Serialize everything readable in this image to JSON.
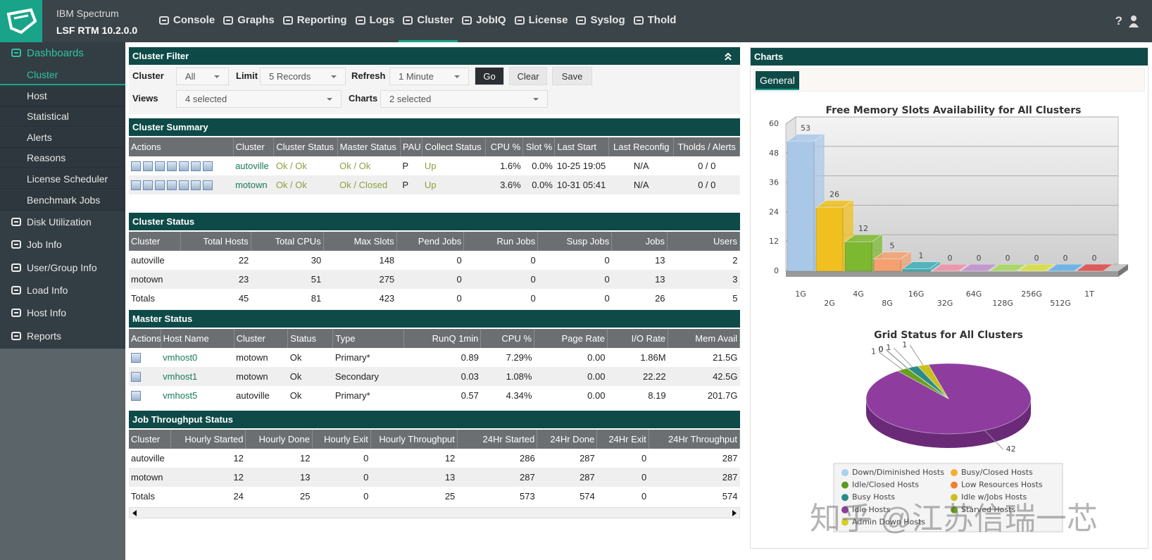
{
  "header": {
    "product": "IBM Spectrum",
    "version": "LSF RTM 10.2.0.0",
    "nav": [
      "Console",
      "Graphs",
      "Reporting",
      "Logs",
      "Cluster",
      "JobIQ",
      "License",
      "Syslog",
      "Thold"
    ],
    "active_nav": 4,
    "help": "?"
  },
  "sidebar": {
    "dashboards": "Dashboards",
    "dashboard_items": [
      "Cluster",
      "Host",
      "Statistical",
      "Alerts",
      "Reasons",
      "License Scheduler",
      "Benchmark Jobs"
    ],
    "active_item": 0,
    "sections": [
      "Disk Utilization",
      "Job Info",
      "User/Group Info",
      "Load Info",
      "Host Info",
      "Reports"
    ]
  },
  "cluster_filter": {
    "title": "Cluster Filter",
    "cluster_label": "Cluster",
    "cluster": "All",
    "limit_label": "Limit",
    "limit": "5 Records",
    "refresh_label": "Refresh",
    "refresh": "1 Minute",
    "buttons": [
      "Go",
      "Clear",
      "Save"
    ],
    "views_label": "Views",
    "views": "4 selected",
    "charts_label": "Charts",
    "charts": "2 selected"
  },
  "cluster_summary": {
    "title": "Cluster Summary",
    "columns": [
      "Actions",
      "Cluster",
      "Cluster Status",
      "Master Status",
      "PAU",
      "Collect Status",
      "CPU %",
      "Slot %",
      "Last Start",
      "Last Reconfig",
      "Tholds / Alerts"
    ],
    "rows": [
      [
        "autoville",
        "Ok / Ok",
        "Ok / Ok",
        "P",
        "Up",
        "1.6%",
        "0.0%",
        "10-25 19:05",
        "N/A",
        "0 / 0"
      ],
      [
        "motown",
        "Ok / Ok",
        "Ok / Closed",
        "P",
        "Up",
        "3.6%",
        "0.0%",
        "10-31 05:41",
        "N/A",
        "0 / 0"
      ]
    ]
  },
  "cluster_status": {
    "title": "Cluster Status",
    "columns": [
      "Cluster",
      "Total Hosts",
      "Total CPUs",
      "Max Slots",
      "Pend Jobs",
      "Run Jobs",
      "Susp Jobs",
      "Jobs",
      "Users"
    ],
    "rows": [
      [
        "autoville",
        "22",
        "30",
        "148",
        "0",
        "0",
        "0",
        "13",
        "2"
      ],
      [
        "motown",
        "23",
        "51",
        "275",
        "0",
        "0",
        "0",
        "13",
        "3"
      ],
      [
        "Totals",
        "45",
        "81",
        "423",
        "0",
        "0",
        "0",
        "26",
        "5"
      ]
    ]
  },
  "master_status": {
    "title": "Master Status",
    "columns": [
      "Actions",
      "Host Name",
      "Cluster",
      "Status",
      "Type",
      "RunQ 1min",
      "CPU %",
      "Page Rate",
      "I/O Rate",
      "Mem Avail"
    ],
    "rows": [
      [
        "vmhost0",
        "motown",
        "Ok",
        "Primary*",
        "0.89",
        "7.29%",
        "0.00",
        "1.86M",
        "21.5G"
      ],
      [
        "vmhost1",
        "motown",
        "Ok",
        "Secondary",
        "0.03",
        "1.08%",
        "0.00",
        "22.22",
        "42.5G"
      ],
      [
        "vmhost5",
        "autoville",
        "Ok",
        "Primary*",
        "0.57",
        "4.34%",
        "0.00",
        "8.19",
        "201.7G"
      ]
    ]
  },
  "job_throughput": {
    "title": "Job Throughput Status",
    "columns": [
      "Cluster",
      "Hourly Started",
      "Hourly Done",
      "Hourly Exit",
      "Hourly Throughput",
      "24Hr Started",
      "24Hr Done",
      "24Hr Exit",
      "24Hr Throughput"
    ],
    "rows": [
      [
        "autoville",
        "12",
        "12",
        "0",
        "12",
        "286",
        "287",
        "0",
        "287"
      ],
      [
        "motown",
        "12",
        "13",
        "0",
        "13",
        "287",
        "287",
        "0",
        "287"
      ],
      [
        "Totals",
        "24",
        "25",
        "0",
        "25",
        "573",
        "574",
        "0",
        "574"
      ]
    ]
  },
  "charts_panel": {
    "title": "Charts",
    "tab": "General"
  },
  "chart_data": [
    {
      "type": "bar",
      "title": "Free Memory Slots Availability for All Clusters",
      "categories": [
        "1G",
        "2G",
        "4G",
        "8G",
        "16G",
        "32G",
        "64G",
        "128G",
        "256G",
        "512G",
        "1T"
      ],
      "values": [
        53,
        26,
        12,
        5,
        1,
        0,
        0,
        0,
        0,
        0,
        0
      ],
      "colors": [
        "#a9c8e8",
        "#f0c020",
        "#7cb830",
        "#f4a070",
        "#40b0b8",
        "#f090a8",
        "#c090d0",
        "#a8d860",
        "#d8e040",
        "#60b0e8",
        "#e04848"
      ],
      "ylim": [
        0,
        60
      ],
      "yticks": [
        0,
        12,
        24,
        36,
        48,
        60
      ],
      "grid": true
    },
    {
      "type": "pie",
      "title": "Grid Status for All Clusters",
      "categories": [
        "Down/Diminished Hosts",
        "Busy/Closed Hosts",
        "Idle/Closed Hosts",
        "Low Resources Hosts",
        "Busy Hosts",
        "Idle w/Jobs Hosts",
        "Idle Hosts",
        "Starved Hosts",
        "Admin Down Hosts"
      ],
      "values": [
        0,
        0,
        0,
        0,
        1,
        1,
        42,
        1,
        0
      ],
      "colors": [
        "#a8d0f0",
        "#f0b030",
        "#5a9a20",
        "#f08030",
        "#2a8a8a",
        "#c8c020",
        "#8e3c9e",
        "#6aa020",
        "#d8d020"
      ]
    }
  ],
  "watermark": "知乎 @江苏信瑞一芯"
}
